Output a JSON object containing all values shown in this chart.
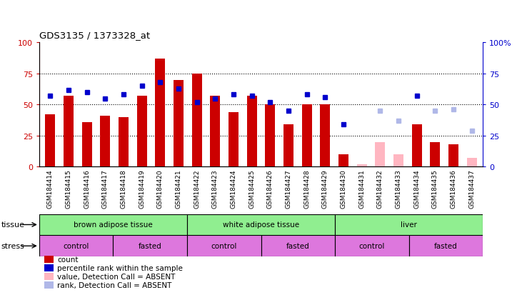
{
  "title": "GDS3135 / 1373328_at",
  "samples": [
    "GSM184414",
    "GSM184415",
    "GSM184416",
    "GSM184417",
    "GSM184418",
    "GSM184419",
    "GSM184420",
    "GSM184421",
    "GSM184422",
    "GSM184423",
    "GSM184424",
    "GSM184425",
    "GSM184426",
    "GSM184427",
    "GSM184428",
    "GSM184429",
    "GSM184430",
    "GSM184431",
    "GSM184432",
    "GSM184433",
    "GSM184434",
    "GSM184435",
    "GSM184436",
    "GSM184437"
  ],
  "count_present": [
    42,
    57,
    36,
    41,
    40,
    57,
    87,
    70,
    75,
    57,
    44,
    57,
    50,
    34,
    50,
    50,
    10,
    null,
    null,
    null,
    34,
    20,
    18,
    null
  ],
  "count_absent": [
    null,
    null,
    null,
    null,
    null,
    null,
    null,
    null,
    null,
    null,
    null,
    null,
    null,
    null,
    null,
    null,
    null,
    2,
    20,
    10,
    null,
    null,
    null,
    7
  ],
  "rank_present": [
    57,
    62,
    60,
    55,
    58,
    65,
    68,
    63,
    52,
    55,
    58,
    57,
    52,
    45,
    58,
    56,
    34,
    null,
    null,
    null,
    57,
    null,
    null,
    null
  ],
  "rank_absent": [
    null,
    null,
    null,
    null,
    null,
    null,
    null,
    null,
    null,
    null,
    null,
    null,
    null,
    null,
    null,
    null,
    null,
    null,
    45,
    37,
    null,
    45,
    46,
    29
  ],
  "bar_color_present": "#cc0000",
  "bar_color_absent": "#ffb6c1",
  "dot_color_present": "#0000cc",
  "dot_color_absent": "#b0b8e8",
  "plot_bg": "#ffffff",
  "fig_bg": "#ffffff",
  "grid_values": [
    25,
    50,
    75
  ],
  "tissue_groups": [
    {
      "label": "brown adipose tissue",
      "start": 0,
      "end": 8
    },
    {
      "label": "white adipose tissue",
      "start": 8,
      "end": 16
    },
    {
      "label": "liver",
      "start": 16,
      "end": 24
    }
  ],
  "tissue_color": "#90ee90",
  "stress_groups": [
    {
      "label": "control",
      "start": 0,
      "end": 4
    },
    {
      "label": "fasted",
      "start": 4,
      "end": 8
    },
    {
      "label": "control",
      "start": 8,
      "end": 12
    },
    {
      "label": "fasted",
      "start": 12,
      "end": 16
    },
    {
      "label": "control",
      "start": 16,
      "end": 20
    },
    {
      "label": "fasted",
      "start": 20,
      "end": 24
    }
  ],
  "stress_color": "#dd77dd",
  "legend_items": [
    {
      "color": "#cc0000",
      "label": "count"
    },
    {
      "color": "#0000cc",
      "label": "percentile rank within the sample"
    },
    {
      "color": "#ffb6c1",
      "label": "value, Detection Call = ABSENT"
    },
    {
      "color": "#b0b8e8",
      "label": "rank, Detection Call = ABSENT"
    }
  ]
}
